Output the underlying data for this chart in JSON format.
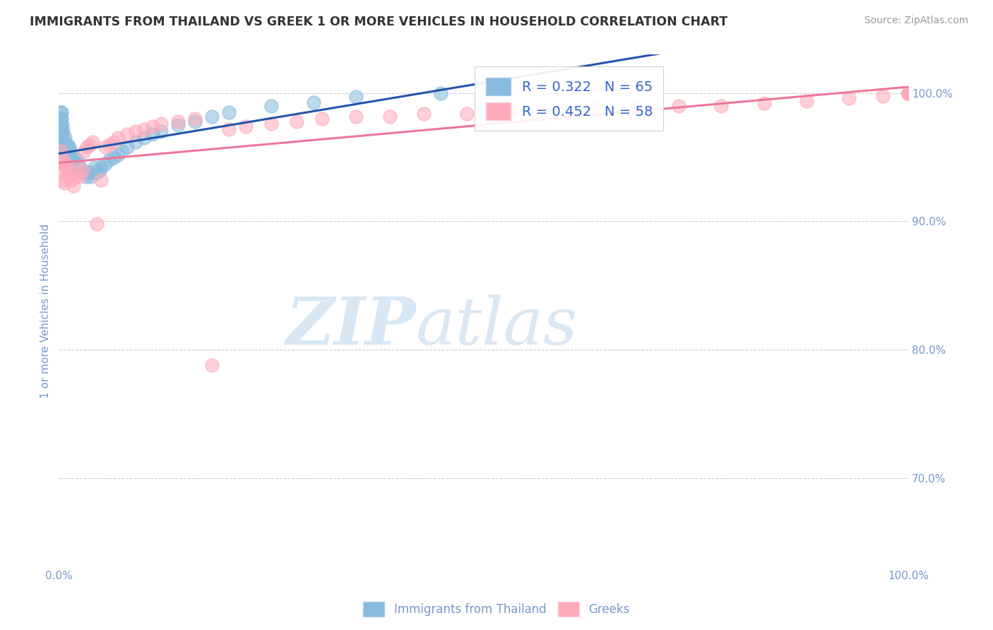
{
  "title": "IMMIGRANTS FROM THAILAND VS GREEK 1 OR MORE VEHICLES IN HOUSEHOLD CORRELATION CHART",
  "source": "Source: ZipAtlas.com",
  "ylabel": "1 or more Vehicles in Household",
  "xlim": [
    0.0,
    1.0
  ],
  "ylim": [
    0.63,
    1.03
  ],
  "x_ticks": [
    0.0,
    0.1,
    0.2,
    0.3,
    0.4,
    0.5,
    0.6,
    0.7,
    0.8,
    0.9,
    1.0
  ],
  "x_tick_labels": [
    "0.0%",
    "",
    "",
    "",
    "",
    "",
    "",
    "",
    "",
    "",
    "100.0%"
  ],
  "y_tick_labels_right": [
    "70.0%",
    "80.0%",
    "90.0%",
    "100.0%"
  ],
  "y_tick_positions_right": [
    0.7,
    0.8,
    0.9,
    1.0
  ],
  "legend_labels": [
    "Immigrants from Thailand",
    "Greeks"
  ],
  "legend_R_N": [
    {
      "R": 0.322,
      "N": 65,
      "color": "#88bbdd"
    },
    {
      "R": 0.452,
      "N": 58,
      "color": "#ffaabb"
    }
  ],
  "background_color": "#ffffff",
  "grid_color": "#cccccc",
  "watermark_zip": "ZIP",
  "watermark_atlas": "atlas",
  "title_color": "#333333",
  "axis_label_color": "#7799cc",
  "right_tick_color": "#7799cc",
  "blue_dot_color": "#88bbdd",
  "pink_dot_color": "#ffaabb",
  "blue_line_color": "#2255aa",
  "pink_line_color": "#ee7799",
  "thailand_x": [
    0.001,
    0.001,
    0.002,
    0.002,
    0.003,
    0.003,
    0.003,
    0.004,
    0.004,
    0.005,
    0.005,
    0.005,
    0.006,
    0.006,
    0.007,
    0.007,
    0.008,
    0.008,
    0.009,
    0.009,
    0.01,
    0.01,
    0.011,
    0.012,
    0.012,
    0.013,
    0.014,
    0.015,
    0.016,
    0.017,
    0.018,
    0.02,
    0.021,
    0.022,
    0.024,
    0.025,
    0.027,
    0.028,
    0.03,
    0.032,
    0.035,
    0.038,
    0.04,
    0.042,
    0.045,
    0.048,
    0.05,
    0.055,
    0.06,
    0.065,
    0.07,
    0.075,
    0.08,
    0.09,
    0.1,
    0.11,
    0.12,
    0.14,
    0.16,
    0.18,
    0.2,
    0.25,
    0.3,
    0.35,
    0.45
  ],
  "thailand_y": [
    0.97,
    0.975,
    0.98,
    0.985,
    0.975,
    0.98,
    0.985,
    0.97,
    0.975,
    0.96,
    0.965,
    0.97,
    0.955,
    0.96,
    0.96,
    0.965,
    0.955,
    0.96,
    0.95,
    0.958,
    0.955,
    0.96,
    0.95,
    0.952,
    0.958,
    0.948,
    0.955,
    0.948,
    0.945,
    0.948,
    0.95,
    0.942,
    0.945,
    0.948,
    0.94,
    0.942,
    0.938,
    0.94,
    0.938,
    0.935,
    0.938,
    0.935,
    0.938,
    0.942,
    0.938,
    0.94,
    0.942,
    0.945,
    0.948,
    0.95,
    0.952,
    0.955,
    0.958,
    0.962,
    0.965,
    0.968,
    0.97,
    0.975,
    0.978,
    0.982,
    0.985,
    0.99,
    0.993,
    0.997,
    1.0
  ],
  "greek_x": [
    0.001,
    0.002,
    0.003,
    0.004,
    0.005,
    0.006,
    0.007,
    0.008,
    0.01,
    0.012,
    0.015,
    0.017,
    0.02,
    0.022,
    0.025,
    0.028,
    0.03,
    0.033,
    0.036,
    0.04,
    0.045,
    0.05,
    0.055,
    0.06,
    0.065,
    0.07,
    0.08,
    0.09,
    0.1,
    0.11,
    0.12,
    0.14,
    0.16,
    0.18,
    0.2,
    0.22,
    0.25,
    0.28,
    0.31,
    0.35,
    0.39,
    0.43,
    0.48,
    0.53,
    0.58,
    0.63,
    0.68,
    0.73,
    0.78,
    0.83,
    0.88,
    0.93,
    0.97,
    1.0,
    1.0,
    1.0,
    1.0,
    1.0
  ],
  "greek_y": [
    0.94,
    0.955,
    0.945,
    0.95,
    0.932,
    0.93,
    0.942,
    0.945,
    0.935,
    0.94,
    0.932,
    0.928,
    0.935,
    0.942,
    0.935,
    0.94,
    0.955,
    0.958,
    0.96,
    0.962,
    0.898,
    0.932,
    0.958,
    0.96,
    0.962,
    0.965,
    0.968,
    0.97,
    0.972,
    0.974,
    0.976,
    0.978,
    0.98,
    0.788,
    0.972,
    0.974,
    0.976,
    0.978,
    0.98,
    0.982,
    0.982,
    0.984,
    0.984,
    0.986,
    0.986,
    0.988,
    0.988,
    0.99,
    0.99,
    0.992,
    0.994,
    0.996,
    0.998,
    1.0,
    1.0,
    1.0,
    1.0,
    1.0
  ]
}
